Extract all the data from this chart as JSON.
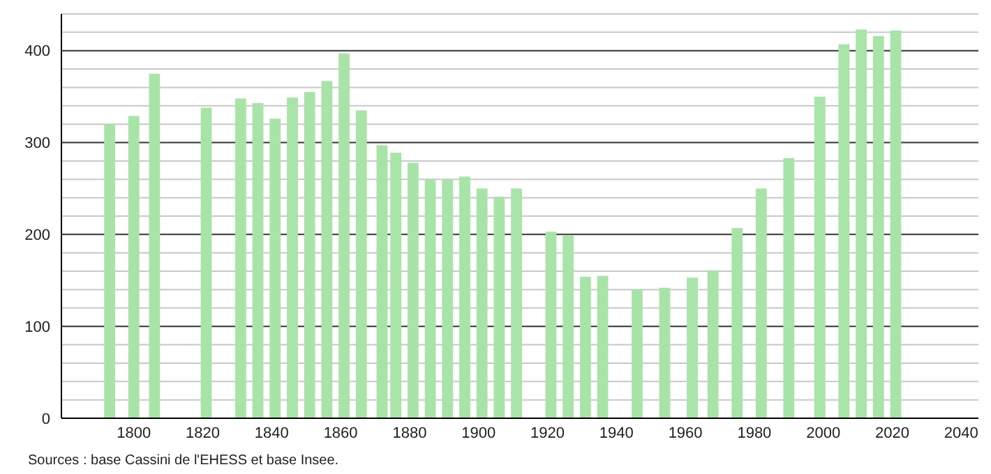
{
  "chart_data": {
    "type": "bar",
    "x": [
      1793,
      1800,
      1806,
      1821,
      1831,
      1836,
      1841,
      1846,
      1851,
      1856,
      1861,
      1866,
      1872,
      1876,
      1881,
      1886,
      1891,
      1896,
      1901,
      1906,
      1911,
      1921,
      1926,
      1931,
      1936,
      1946,
      1954,
      1962,
      1968,
      1975,
      1982,
      1990,
      1999,
      2006,
      2011,
      2016,
      2021
    ],
    "values": [
      320,
      329,
      375,
      338,
      348,
      343,
      326,
      349,
      355,
      367,
      397,
      335,
      297,
      289,
      278,
      260,
      260,
      263,
      250,
      241,
      250,
      203,
      199,
      154,
      155,
      140,
      142,
      153,
      161,
      207,
      250,
      283,
      350,
      407,
      423,
      416,
      422
    ],
    "color": "#a8e4a8",
    "xlim": [
      1779,
      2045
    ],
    "xticks": [
      1800,
      1820,
      1840,
      1860,
      1880,
      1900,
      1920,
      1940,
      1960,
      1980,
      2000,
      2020,
      2040
    ],
    "ylim": [
      0,
      440
    ],
    "yticks": [
      0,
      {
        "value": 20,
        "label": null
      },
      {
        "value": 40,
        "label": null
      },
      {
        "value": 60,
        "label": null
      },
      {
        "value": 80,
        "label": null
      },
      100,
      {
        "value": 120,
        "label": null
      },
      {
        "value": 140,
        "label": null
      },
      {
        "value": 160,
        "label": null
      },
      {
        "value": 180,
        "label": null
      },
      200,
      {
        "value": 220,
        "label": null
      },
      {
        "value": 240,
        "label": null
      },
      {
        "value": 260,
        "label": null
      },
      {
        "value": 280,
        "label": null
      },
      300,
      {
        "value": 320,
        "label": null
      },
      {
        "value": 340,
        "label": null
      },
      {
        "value": 360,
        "label": null
      },
      {
        "value": 380,
        "label": null
      },
      400,
      {
        "value": 420,
        "label": null
      },
      {
        "value": 440,
        "label": null
      }
    ],
    "grid": "y",
    "annotations": [
      "Sources : base Cassini de l'EHESS et base Insee."
    ]
  }
}
